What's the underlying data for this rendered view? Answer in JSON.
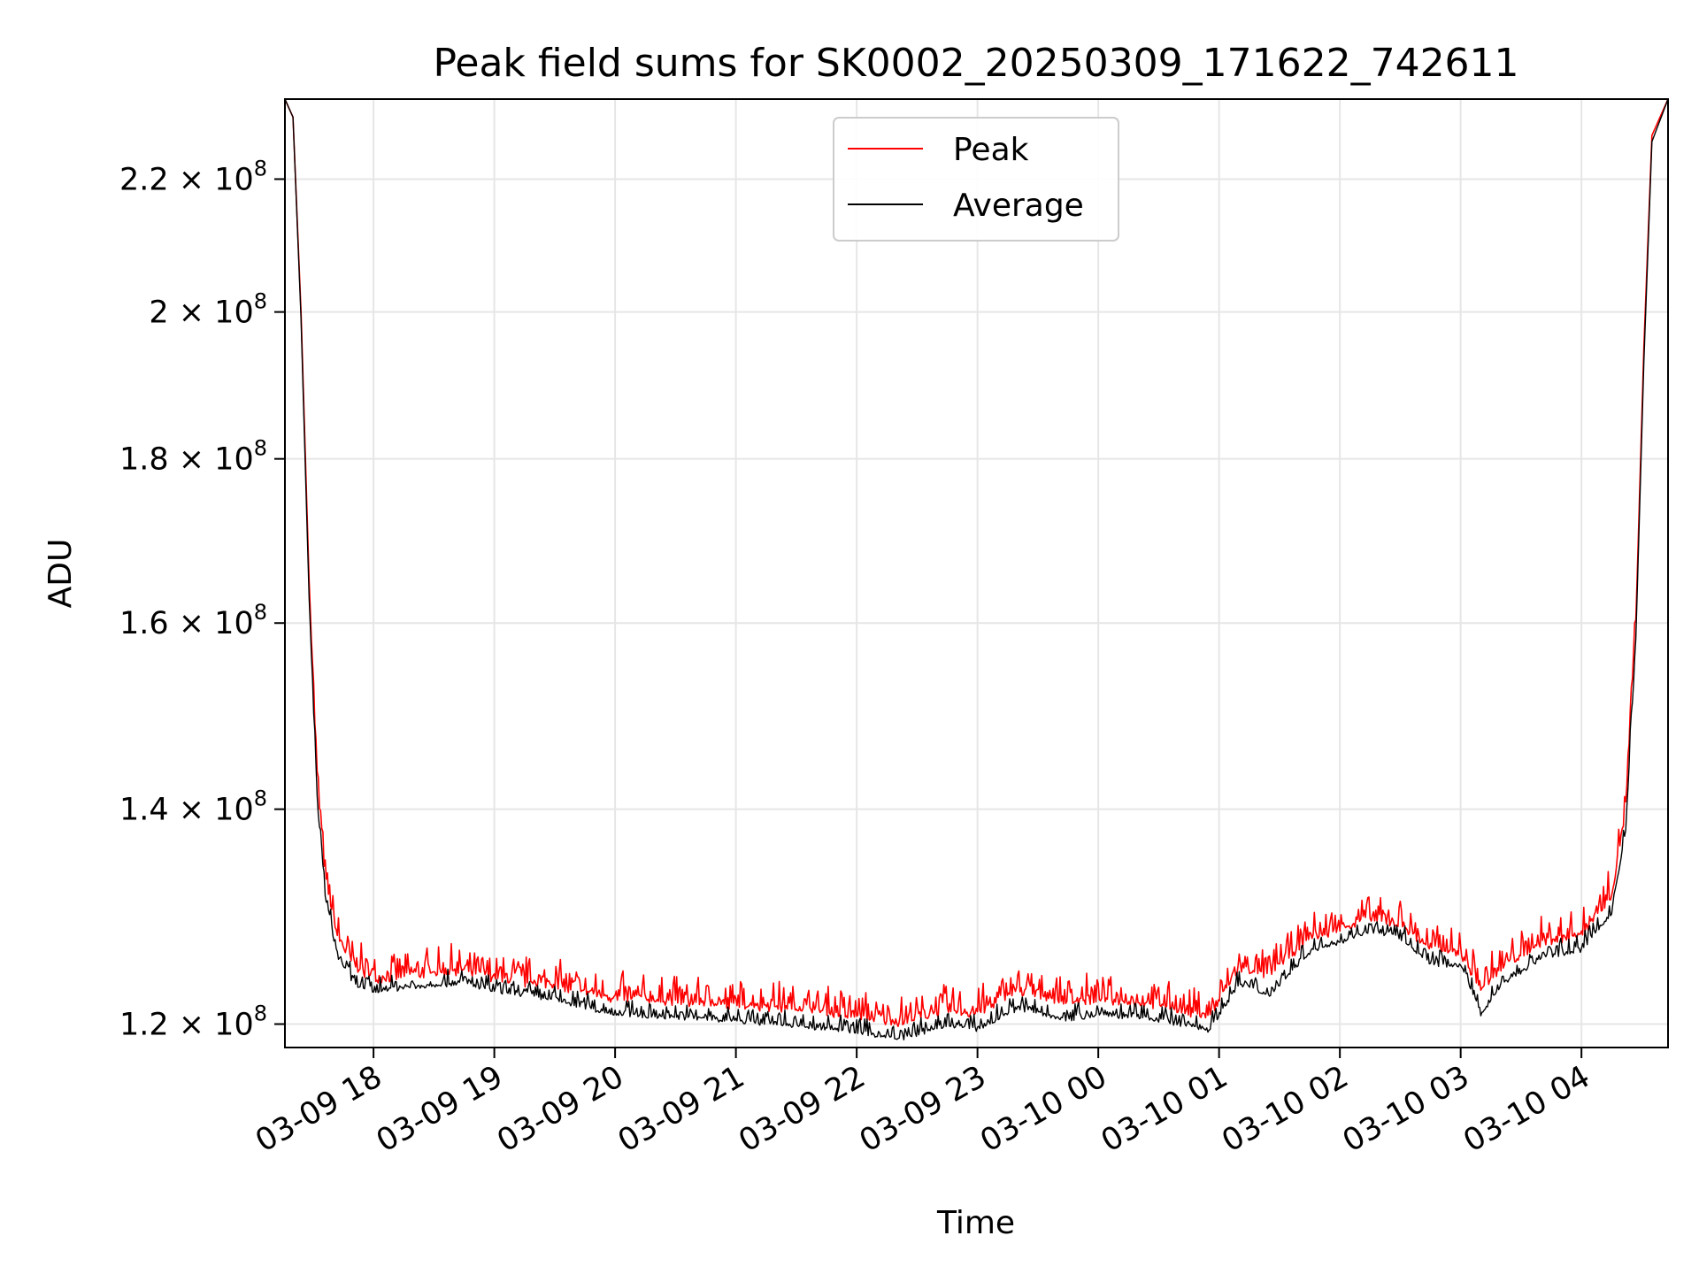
{
  "chart_data": {
    "type": "line",
    "title": "Peak field sums for SK0002_20250309_171622_742611",
    "xlabel": "Time",
    "ylabel": "ADU",
    "y_scale": "log",
    "grid": true,
    "legend_position": "top-center",
    "x_range": [
      "2025-03-09 17:16",
      "2025-03-10 04:43"
    ],
    "ylim": [
      118000000,
      233000000
    ],
    "x_ticks": [
      "03-09 18",
      "03-09 19",
      "03-09 20",
      "03-09 21",
      "03-09 22",
      "03-09 23",
      "03-10 00",
      "03-10 01",
      "03-10 02",
      "03-10 03",
      "03-10 04"
    ],
    "y_ticks": [
      {
        "value": 120000000,
        "mantissa": "1.2",
        "base": "10",
        "exp": "8"
      },
      {
        "value": 140000000,
        "mantissa": "1.4",
        "base": "10",
        "exp": "8"
      },
      {
        "value": 160000000,
        "mantissa": "1.6",
        "base": "10",
        "exp": "8"
      },
      {
        "value": 180000000,
        "mantissa": "1.8",
        "base": "10",
        "exp": "8"
      },
      {
        "value": 200000000,
        "mantissa": "2",
        "base": "10",
        "exp": "8"
      },
      {
        "value": 220000000,
        "mantissa": "2.2",
        "base": "10",
        "exp": "8"
      }
    ],
    "series": [
      {
        "name": "Peak",
        "color": "#ff0000",
        "points": [
          [
            "2025-03-09 17:16",
            233000000
          ],
          [
            "2025-03-09 17:20",
            230000000
          ],
          [
            "2025-03-09 17:24",
            200000000
          ],
          [
            "2025-03-09 17:28",
            165000000
          ],
          [
            "2025-03-09 17:32",
            143000000
          ],
          [
            "2025-03-09 17:36",
            133000000
          ],
          [
            "2025-03-09 17:42",
            127500000
          ],
          [
            "2025-03-09 17:50",
            125000000
          ],
          [
            "2025-03-09 18:00",
            123800000
          ],
          [
            "2025-03-09 18:30",
            124300000
          ],
          [
            "2025-03-09 18:45",
            124500000
          ],
          [
            "2025-03-09 19:00",
            123800000
          ],
          [
            "2025-03-09 19:30",
            123200000
          ],
          [
            "2025-03-09 20:00",
            122000000
          ],
          [
            "2025-03-09 20:30",
            121800000
          ],
          [
            "2025-03-09 21:00",
            121500000
          ],
          [
            "2025-03-09 21:30",
            121200000
          ],
          [
            "2025-03-09 22:00",
            120500000
          ],
          [
            "2025-03-09 22:20",
            120000000
          ],
          [
            "2025-03-09 22:45",
            121000000
          ],
          [
            "2025-03-09 23:00",
            120800000
          ],
          [
            "2025-03-09 23:20",
            122800000
          ],
          [
            "2025-03-09 23:45",
            121800000
          ],
          [
            "2025-03-10 00:00",
            122000000
          ],
          [
            "2025-03-10 00:30",
            121500000
          ],
          [
            "2025-03-10 00:55",
            120500000
          ],
          [
            "2025-03-10 01:10",
            124800000
          ],
          [
            "2025-03-10 01:25",
            124200000
          ],
          [
            "2025-03-10 01:45",
            127500000
          ],
          [
            "2025-03-10 02:00",
            128300000
          ],
          [
            "2025-03-10 02:15",
            129300000
          ],
          [
            "2025-03-10 02:30",
            128800000
          ],
          [
            "2025-03-10 02:45",
            126500000
          ],
          [
            "2025-03-10 03:00",
            126000000
          ],
          [
            "2025-03-10 03:10",
            122800000
          ],
          [
            "2025-03-10 03:20",
            124800000
          ],
          [
            "2025-03-10 03:40",
            127000000
          ],
          [
            "2025-03-10 04:00",
            127800000
          ],
          [
            "2025-03-10 04:15",
            131500000
          ],
          [
            "2025-03-10 04:22",
            140000000
          ],
          [
            "2025-03-10 04:27",
            160000000
          ],
          [
            "2025-03-10 04:31",
            195000000
          ],
          [
            "2025-03-10 04:35",
            227000000
          ],
          [
            "2025-03-10 04:43",
            233000000
          ]
        ]
      },
      {
        "name": "Average",
        "color": "#000000",
        "points": [
          [
            "2025-03-09 17:16",
            233000000
          ],
          [
            "2025-03-09 17:20",
            230000000
          ],
          [
            "2025-03-09 17:24",
            199000000
          ],
          [
            "2025-03-09 17:28",
            163000000
          ],
          [
            "2025-03-09 17:32",
            141000000
          ],
          [
            "2025-03-09 17:36",
            131500000
          ],
          [
            "2025-03-09 17:42",
            126000000
          ],
          [
            "2025-03-09 17:50",
            123500000
          ],
          [
            "2025-03-09 18:00",
            122800000
          ],
          [
            "2025-03-09 18:30",
            123300000
          ],
          [
            "2025-03-09 18:45",
            123500000
          ],
          [
            "2025-03-09 19:00",
            122800000
          ],
          [
            "2025-03-09 19:30",
            122000000
          ],
          [
            "2025-03-09 20:00",
            120800000
          ],
          [
            "2025-03-09 20:30",
            120500000
          ],
          [
            "2025-03-09 21:00",
            120200000
          ],
          [
            "2025-03-09 21:30",
            119800000
          ],
          [
            "2025-03-09 22:00",
            119300000
          ],
          [
            "2025-03-09 22:20",
            118600000
          ],
          [
            "2025-03-09 22:45",
            119800000
          ],
          [
            "2025-03-09 23:00",
            119500000
          ],
          [
            "2025-03-09 23:20",
            121300000
          ],
          [
            "2025-03-09 23:45",
            120300000
          ],
          [
            "2025-03-10 00:00",
            120800000
          ],
          [
            "2025-03-10 00:30",
            120300000
          ],
          [
            "2025-03-10 00:55",
            119400000
          ],
          [
            "2025-03-10 01:10",
            123500000
          ],
          [
            "2025-03-10 01:25",
            122500000
          ],
          [
            "2025-03-10 01:45",
            126300000
          ],
          [
            "2025-03-10 02:00",
            127200000
          ],
          [
            "2025-03-10 02:15",
            128300000
          ],
          [
            "2025-03-10 02:30",
            127600000
          ],
          [
            "2025-03-10 02:45",
            125300000
          ],
          [
            "2025-03-10 03:00",
            125000000
          ],
          [
            "2025-03-10 03:10",
            120800000
          ],
          [
            "2025-03-10 03:20",
            123300000
          ],
          [
            "2025-03-10 03:40",
            125800000
          ],
          [
            "2025-03-10 04:00",
            126500000
          ],
          [
            "2025-03-10 04:15",
            129800000
          ],
          [
            "2025-03-10 04:22",
            138000000
          ],
          [
            "2025-03-10 04:27",
            158000000
          ],
          [
            "2025-03-10 04:31",
            193000000
          ],
          [
            "2025-03-10 04:35",
            226000000
          ],
          [
            "2025-03-10 04:43",
            233000000
          ]
        ]
      }
    ]
  }
}
